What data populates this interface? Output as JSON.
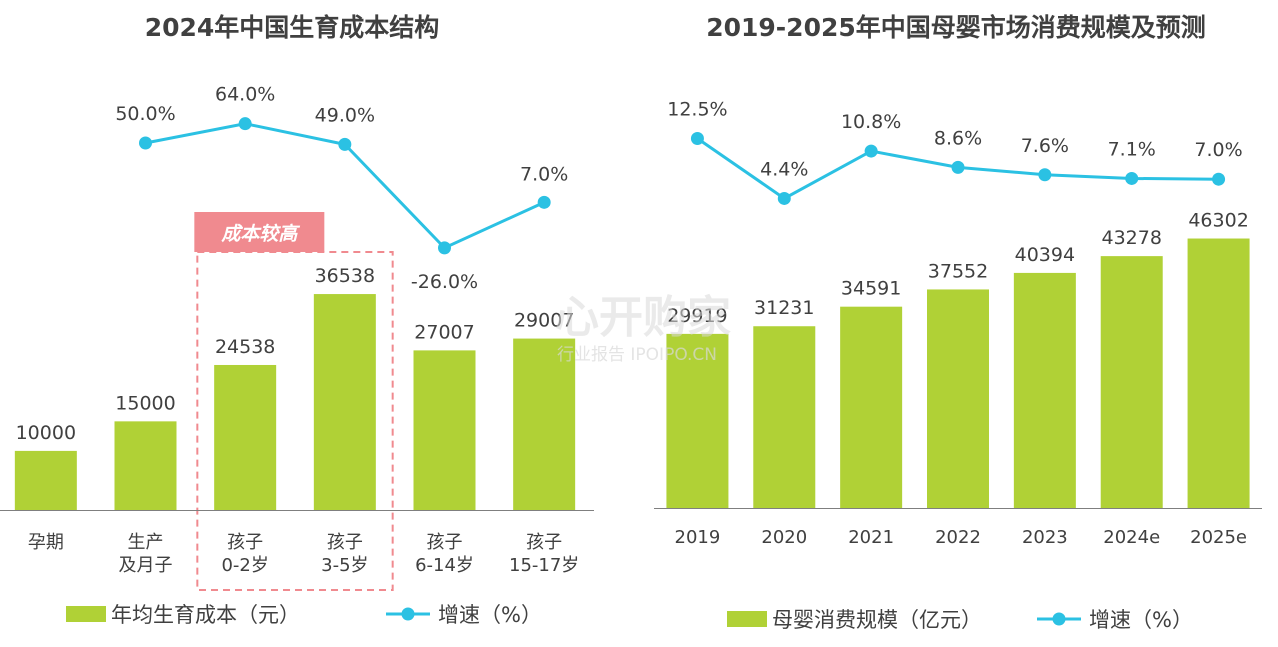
{
  "chart_data": [
    {
      "type": "bar",
      "title": "2024年中国生育成本结构",
      "categories": [
        [
          "孕期"
        ],
        [
          "生产",
          "及月子"
        ],
        [
          "孩子",
          "0-2岁"
        ],
        [
          "孩子",
          "3-5岁"
        ],
        [
          "孩子",
          "6-14岁"
        ],
        [
          "孩子",
          "15-17岁"
        ]
      ],
      "series": [
        {
          "name": "年均生育成本（元）",
          "type": "bar",
          "values": [
            10000,
            15000,
            24538,
            36538,
            27007,
            29007
          ],
          "labels": [
            "10000",
            "15000",
            "24538",
            "36538",
            "27007",
            "29007"
          ]
        },
        {
          "name": "增速（%）",
          "type": "line",
          "values": [
            null,
            50.0,
            64.0,
            49.0,
            -26.0,
            7.0
          ],
          "labels": [
            "",
            "50.0%",
            "64.0%",
            "49.0%",
            "-26.0%",
            "7.0%"
          ]
        }
      ],
      "highlight": {
        "label": "成本较高",
        "categories": [
          2,
          3
        ]
      },
      "legend_position": "bottom"
    },
    {
      "type": "bar",
      "title": "2019-2025年中国母婴市场消费规模及预测",
      "categories": [
        "2019",
        "2020",
        "2021",
        "2022",
        "2023",
        "2024e",
        "2025e"
      ],
      "series": [
        {
          "name": "母婴消费规模（亿元）",
          "type": "bar",
          "values": [
            29919,
            31231,
            34591,
            37552,
            40394,
            43278,
            46302
          ],
          "labels": [
            "29919",
            "31231",
            "34591",
            "37552",
            "40394",
            "43278",
            "46302"
          ]
        },
        {
          "name": "增速（%）",
          "type": "line",
          "values": [
            12.5,
            4.4,
            10.8,
            8.6,
            7.6,
            7.1,
            7.0
          ],
          "labels": [
            "12.5%",
            "4.4%",
            "10.8%",
            "8.6%",
            "7.6%",
            "7.1%",
            "7.0%"
          ]
        }
      ],
      "legend_position": "bottom"
    }
  ],
  "colors": {
    "bar": "#b0d136",
    "line": "#2bc1e3",
    "highlight": "#f08a8f",
    "text": "#404040",
    "axis": "#7f7f7f"
  },
  "watermark": {
    "line1": "心开购家",
    "line2": "行业报告 IPOIPO.CN"
  }
}
